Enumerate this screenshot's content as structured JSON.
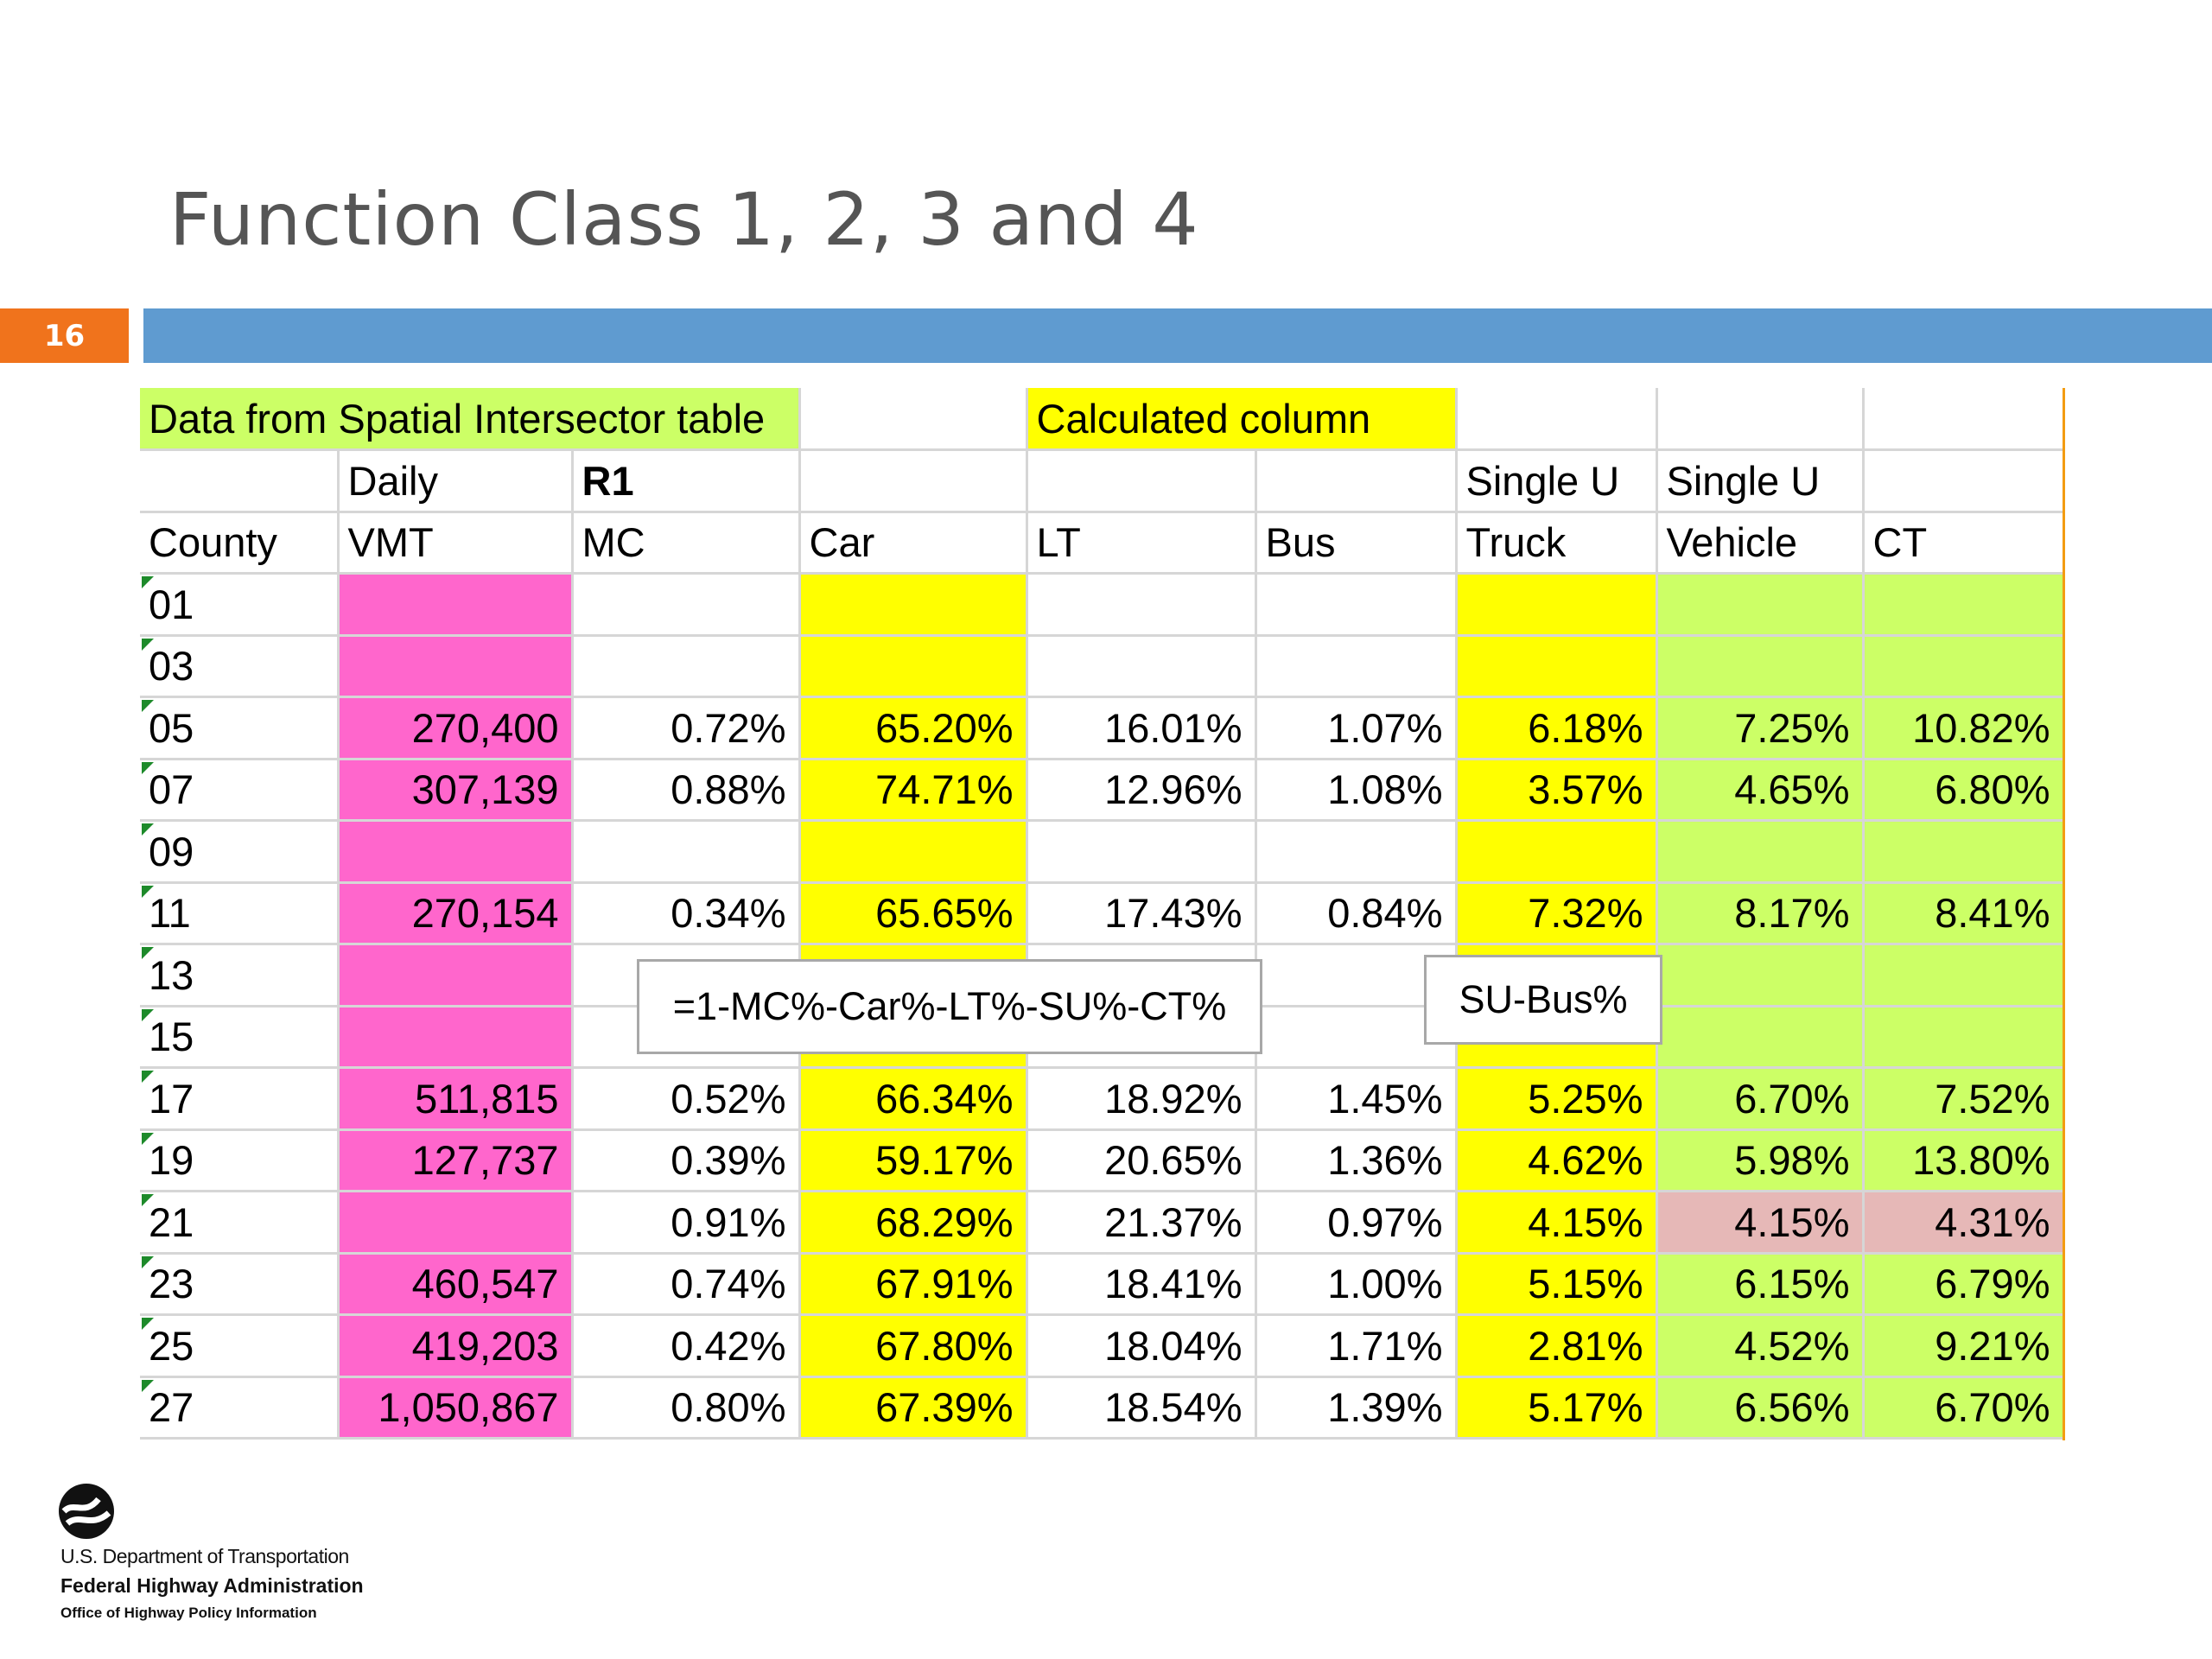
{
  "slide": {
    "title": "Function Class 1, 2, 3 and 4",
    "number": "16"
  },
  "table": {
    "banner": {
      "data_source": "Data from Spatial Intersector table",
      "calculated": "Calculated column"
    },
    "header_top": [
      "",
      "Daily",
      "R1",
      "",
      "",
      "",
      "Single U",
      "Single U",
      ""
    ],
    "header_bottom": [
      "County",
      "VMT",
      "MC",
      "Car",
      "LT",
      "Bus",
      "Truck",
      "Vehicle",
      "CT"
    ],
    "rows": [
      [
        "01",
        "",
        "",
        "",
        "",
        "",
        "",
        "",
        ""
      ],
      [
        "03",
        "",
        "",
        "",
        "",
        "",
        "",
        "",
        ""
      ],
      [
        "05",
        "270,400",
        "0.72%",
        "65.20%",
        "16.01%",
        "1.07%",
        "6.18%",
        "7.25%",
        "10.82%"
      ],
      [
        "07",
        "307,139",
        "0.88%",
        "74.71%",
        "12.96%",
        "1.08%",
        "3.57%",
        "4.65%",
        "6.80%"
      ],
      [
        "09",
        "",
        "",
        "",
        "",
        "",
        "",
        "",
        ""
      ],
      [
        "11",
        "270,154",
        "0.34%",
        "65.65%",
        "17.43%",
        "0.84%",
        "7.32%",
        "8.17%",
        "8.41%"
      ],
      [
        "13",
        "",
        "",
        "",
        "",
        "",
        "",
        "",
        ""
      ],
      [
        "15",
        "",
        "",
        "",
        "",
        "",
        "",
        "",
        ""
      ],
      [
        "17",
        "511,815",
        "0.52%",
        "66.34%",
        "18.92%",
        "1.45%",
        "5.25%",
        "6.70%",
        "7.52%"
      ],
      [
        "19",
        "127,737",
        "0.39%",
        "59.17%",
        "20.65%",
        "1.36%",
        "4.62%",
        "5.98%",
        "13.80%"
      ],
      [
        "21",
        "",
        "0.91%",
        "68.29%",
        "21.37%",
        "0.97%",
        "4.15%",
        "4.15%",
        "4.31%"
      ],
      [
        "23",
        "460,547",
        "0.74%",
        "67.91%",
        "18.41%",
        "1.00%",
        "5.15%",
        "6.15%",
        "6.79%"
      ],
      [
        "25",
        "419,203",
        "0.42%",
        "67.80%",
        "18.04%",
        "1.71%",
        "2.81%",
        "4.52%",
        "9.21%"
      ],
      [
        "27",
        "1,050,867",
        "0.80%",
        "67.39%",
        "18.54%",
        "1.39%",
        "5.17%",
        "6.56%",
        "6.70%"
      ]
    ]
  },
  "callouts": {
    "other_formula": "=1-MC%-Car%-LT%-SU%-CT%",
    "truck_formula": "SU-Bus%"
  },
  "footer": {
    "line1": "U.S. Department of Transportation",
    "line2": "Federal Highway Administration",
    "line3": "Office of Highway Policy Information"
  },
  "colors": {
    "green_highlight": "#ccff66",
    "yellow_highlight": "#ffff00",
    "pink_highlight": "#ff66cc",
    "rose_highlight": "#e6b8b7",
    "orange_badge": "#f0731c",
    "blue_bar": "#5f9bd0"
  }
}
